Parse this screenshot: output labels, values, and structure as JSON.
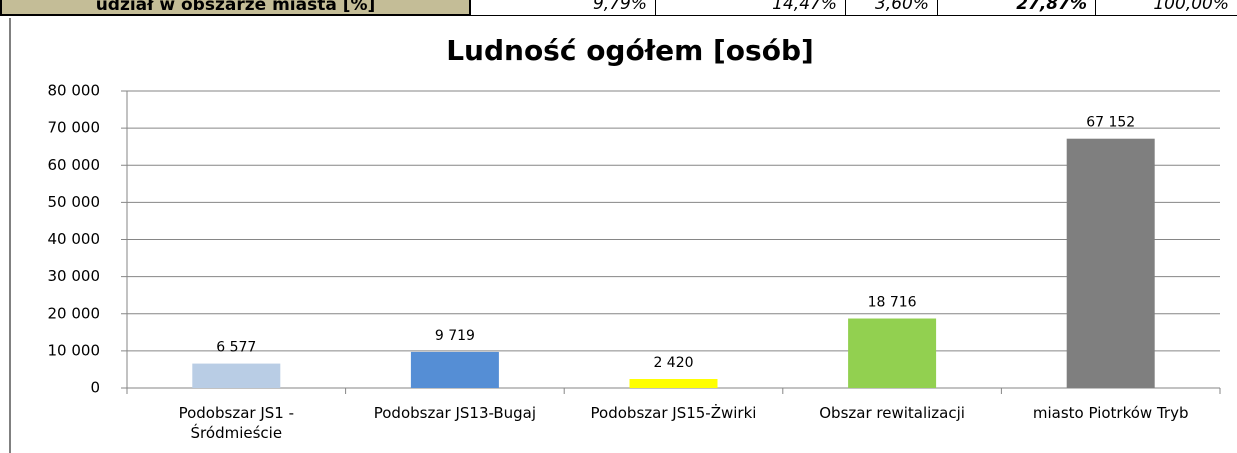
{
  "table": {
    "rows": [
      [
        "udział w obszarze miasta [%]",
        "9,79%",
        "14,47%",
        "3,60%",
        "27,87%",
        "100,00%"
      ]
    ]
  },
  "chart_data": {
    "type": "bar",
    "title": "Ludność ogółem [osób]",
    "categories": [
      "Podobszar JS1 - Śródmieście",
      "Podobszar JS13-Bugaj",
      "Podobszar JS15-Żwirki",
      "Obszar rewitalizacji",
      "miasto Piotrków Tryb"
    ],
    "values": [
      6577,
      9719,
      2420,
      18716,
      67152
    ],
    "value_labels": [
      "6 577",
      "9 719",
      "2 420",
      "18 716",
      "67 152"
    ],
    "colors": [
      "#b9cde5",
      "#558ed5",
      "#ffff00",
      "#92d050",
      "#7f7f7f"
    ],
    "ylim": [
      0,
      80000
    ],
    "yticks": [
      0,
      {
        "value": 10000,
        "label": "10 000"
      },
      {
        "value": 20000,
        "label": "20 000"
      },
      {
        "value": 30000,
        "label": "30 000"
      },
      {
        "value": 40000,
        "label": "40 000"
      },
      {
        "value": 50000,
        "label": "50 000"
      },
      {
        "value": 60000,
        "label": "60 000"
      },
      {
        "value": 70000,
        "label": "70 000"
      },
      {
        "value": 80000,
        "label": "80 000"
      }
    ],
    "grid": true
  }
}
